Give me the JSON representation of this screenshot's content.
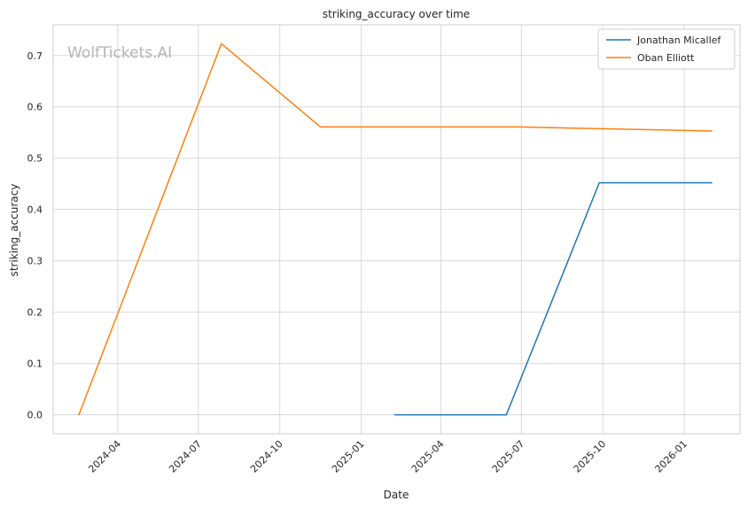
{
  "chart_data": {
    "type": "line",
    "title": "striking_accuracy over time",
    "xlabel": "Date",
    "ylabel": "striking_accuracy",
    "watermark": "WolfTickets.AI",
    "x_ticks": [
      "2024-04",
      "2024-07",
      "2024-10",
      "2025-01",
      "2025-04",
      "2025-07",
      "2025-10",
      "2026-01"
    ],
    "y_ticks": [
      "0.0",
      "0.1",
      "0.2",
      "0.3",
      "0.4",
      "0.5",
      "0.6",
      "0.7"
    ],
    "xlim": [
      "2024-01-19",
      "2026-03-05"
    ],
    "ylim": [
      -0.037,
      0.76
    ],
    "grid": true,
    "legend_position": "top-right",
    "series": [
      {
        "name": "Jonathan Micallef",
        "color": "#1f77b4",
        "points": [
          {
            "x": "2025-02-08",
            "y": 0.0
          },
          {
            "x": "2025-06-14",
            "y": 0.0
          },
          {
            "x": "2025-09-27",
            "y": 0.452
          },
          {
            "x": "2026-02-01",
            "y": 0.452
          }
        ]
      },
      {
        "name": "Oban Elliott",
        "color": "#ff7f0e",
        "points": [
          {
            "x": "2024-02-17",
            "y": 0.0
          },
          {
            "x": "2024-07-27",
            "y": 0.723
          },
          {
            "x": "2024-11-16",
            "y": 0.561
          },
          {
            "x": "2025-06-28",
            "y": 0.561
          },
          {
            "x": "2026-02-01",
            "y": 0.553
          }
        ]
      }
    ]
  }
}
